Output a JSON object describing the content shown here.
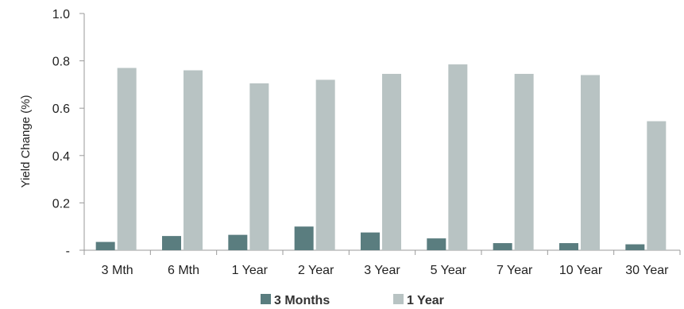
{
  "chart_data": {
    "type": "bar",
    "title": "",
    "xlabel": "",
    "ylabel": "Yield Change (%)",
    "ylim": [
      0,
      1.0
    ],
    "yticks": [
      {
        "value": 0,
        "label": "-"
      },
      {
        "value": 0.2,
        "label": "0.2"
      },
      {
        "value": 0.4,
        "label": "0.4"
      },
      {
        "value": 0.6,
        "label": "0.6"
      },
      {
        "value": 0.8,
        "label": "0.8"
      },
      {
        "value": 1.0,
        "label": "1.0"
      }
    ],
    "categories": [
      "3 Mth",
      "6 Mth",
      "1 Year",
      "2 Year",
      "3 Year",
      "5 Year",
      "7 Year",
      "10 Year",
      "30 Year"
    ],
    "series": [
      {
        "name": "3 Months",
        "color": "#5a7d7f",
        "values": [
          0.035,
          0.06,
          0.065,
          0.1,
          0.075,
          0.05,
          0.03,
          0.03,
          0.025
        ]
      },
      {
        "name": "1 Year",
        "color": "#b8c3c3",
        "values": [
          0.77,
          0.76,
          0.705,
          0.72,
          0.745,
          0.785,
          0.745,
          0.74,
          0.545
        ]
      }
    ],
    "grid": false,
    "legend_position": "bottom-center"
  }
}
